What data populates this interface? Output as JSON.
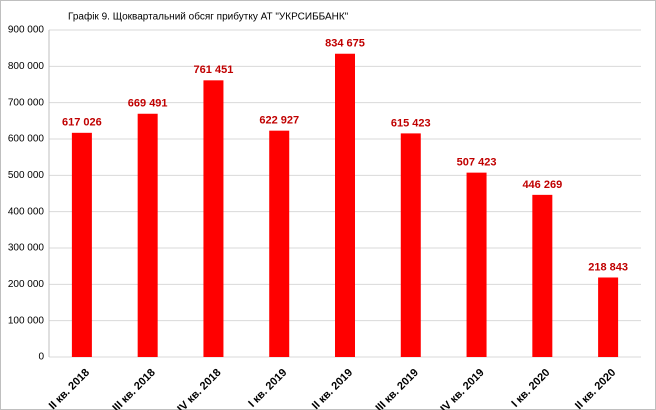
{
  "chart_data": {
    "type": "bar",
    "title": "Графік 9. Щоквартальний обсяг прибутку АТ \"УКРСИББАНК\"",
    "categories": [
      "II кв. 2018",
      "III кв. 2018",
      "IV кв. 2018",
      "I кв. 2019",
      "II кв. 2019",
      "III кв. 2019",
      "IV кв. 2019",
      "I кв. 2020",
      "II кв. 2020"
    ],
    "values": [
      617026,
      669491,
      761451,
      622927,
      834675,
      615423,
      507423,
      446269,
      218843
    ],
    "value_labels": [
      "617 026",
      "669 491",
      "761 451",
      "622 927",
      "834 675",
      "615 423",
      "507 423",
      "446 269",
      "218 843"
    ],
    "color": "#ff0000",
    "label_color": "#c00000",
    "ylim": [
      0,
      900000
    ],
    "yticks": [
      0,
      {
        "value": 100000,
        "label": "100 000"
      },
      {
        "value": 200000,
        "label": "200 000"
      },
      {
        "value": 300000,
        "label": "300 000"
      },
      {
        "value": 400000,
        "label": "400 000"
      },
      {
        "value": 500000,
        "label": "500 000"
      },
      {
        "value": 600000,
        "label": "600 000"
      },
      {
        "value": 700000,
        "label": "700 000"
      },
      {
        "value": 800000,
        "label": "800 000"
      },
      {
        "value": 900000,
        "label": "900 000"
      }
    ],
    "grid": true
  }
}
